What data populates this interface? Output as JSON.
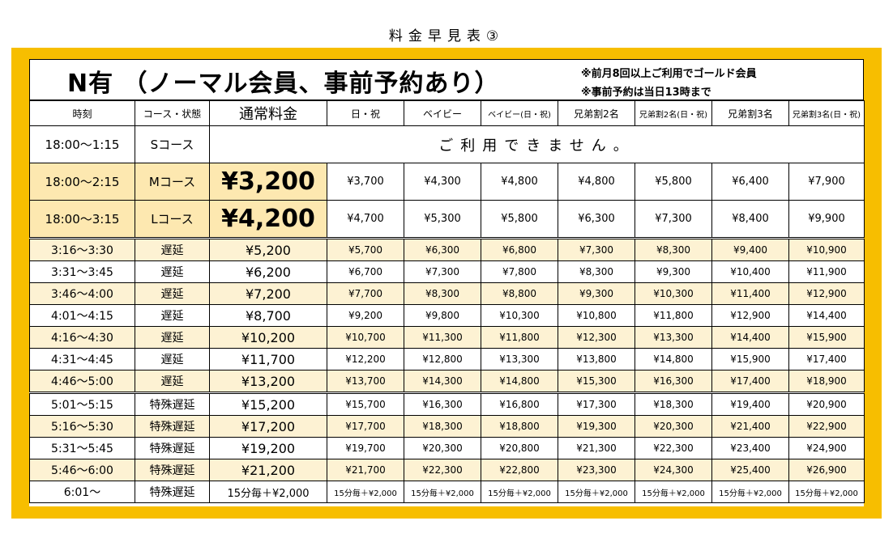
{
  "page_title": "料金早見表③",
  "card": {
    "title": "N有 （ノーマル会員、事前予約あり）",
    "notes": [
      "※前月8回以上ご利用でゴールド会員",
      "※事前予約は当日13時まで"
    ]
  },
  "columns": [
    "時刻",
    "コース・状態",
    "通常料金",
    "日・祝",
    "ベイビー",
    "ベイビー(日・祝)",
    "兄弟割2名",
    "兄弟割2名(日・祝)",
    "兄弟割3名",
    "兄弟割3名(日・祝)"
  ],
  "s_course": {
    "time": "18:00～1:15",
    "course": "Sコース",
    "message": "ご利用できません。"
  },
  "course_rows": [
    {
      "time": "18:00～2:15",
      "course": "Mコース",
      "prices": [
        "¥3,200",
        "¥3,700",
        "¥4,300",
        "¥4,800",
        "¥4,800",
        "¥5,800",
        "¥6,400",
        "¥7,900"
      ]
    },
    {
      "time": "18:00～3:15",
      "course": "Lコース",
      "prices": [
        "¥4,200",
        "¥4,700",
        "¥5,300",
        "¥5,800",
        "¥6,300",
        "¥7,300",
        "¥8,400",
        "¥9,900"
      ]
    }
  ],
  "late_rows": [
    {
      "time": "3:16～3:30",
      "status": "遅延",
      "prices": [
        "¥5,200",
        "¥5,700",
        "¥6,300",
        "¥6,800",
        "¥7,300",
        "¥8,300",
        "¥9,400",
        "¥10,900"
      ]
    },
    {
      "time": "3:31～3:45",
      "status": "遅延",
      "prices": [
        "¥6,200",
        "¥6,700",
        "¥7,300",
        "¥7,800",
        "¥8,300",
        "¥9,300",
        "¥10,400",
        "¥11,900"
      ]
    },
    {
      "time": "3:46～4:00",
      "status": "遅延",
      "prices": [
        "¥7,200",
        "¥7,700",
        "¥8,300",
        "¥8,800",
        "¥9,300",
        "¥10,300",
        "¥11,400",
        "¥12,900"
      ]
    },
    {
      "time": "4:01～4:15",
      "status": "遅延",
      "prices": [
        "¥8,700",
        "¥9,200",
        "¥9,800",
        "¥10,300",
        "¥10,800",
        "¥11,800",
        "¥12,900",
        "¥14,400"
      ]
    },
    {
      "time": "4:16～4:30",
      "status": "遅延",
      "prices": [
        "¥10,200",
        "¥10,700",
        "¥11,300",
        "¥11,800",
        "¥12,300",
        "¥13,300",
        "¥14,400",
        "¥15,900"
      ]
    },
    {
      "time": "4:31～4:45",
      "status": "遅延",
      "prices": [
        "¥11,700",
        "¥12,200",
        "¥12,800",
        "¥13,300",
        "¥13,800",
        "¥14,800",
        "¥15,900",
        "¥17,400"
      ]
    },
    {
      "time": "4:46～5:00",
      "status": "遅延",
      "prices": [
        "¥13,200",
        "¥13,700",
        "¥14,300",
        "¥14,800",
        "¥15,300",
        "¥16,300",
        "¥17,400",
        "¥18,900"
      ]
    },
    {
      "time": "5:01～5:15",
      "status": "特殊遅延",
      "prices": [
        "¥15,200",
        "¥15,700",
        "¥16,300",
        "¥16,800",
        "¥17,300",
        "¥18,300",
        "¥19,400",
        "¥20,900"
      ]
    },
    {
      "time": "5:16～5:30",
      "status": "特殊遅延",
      "prices": [
        "¥17,200",
        "¥17,700",
        "¥18,300",
        "¥18,800",
        "¥19,300",
        "¥20,300",
        "¥21,400",
        "¥22,900"
      ]
    },
    {
      "time": "5:31～5:45",
      "status": "特殊遅延",
      "prices": [
        "¥19,200",
        "¥19,700",
        "¥20,300",
        "¥20,800",
        "¥21,300",
        "¥22,300",
        "¥23,400",
        "¥24,900"
      ]
    },
    {
      "time": "5:46～6:00",
      "status": "特殊遅延",
      "prices": [
        "¥21,200",
        "¥21,700",
        "¥22,300",
        "¥22,800",
        "¥23,300",
        "¥24,300",
        "¥25,400",
        "¥26,900"
      ]
    },
    {
      "time": "6:01～",
      "status": "特殊遅延",
      "prices": [
        "15分毎＋¥2,000",
        "15分毎＋¥2,000",
        "15分毎＋¥2,000",
        "15分毎＋¥2,000",
        "15分毎＋¥2,000",
        "15分毎＋¥2,000",
        "15分毎＋¥2,000",
        "15分毎＋¥2,000"
      ]
    }
  ],
  "colors": {
    "frame": "#f7be00",
    "highlight": "#fde8b0",
    "band": "#fdf2d3"
  }
}
